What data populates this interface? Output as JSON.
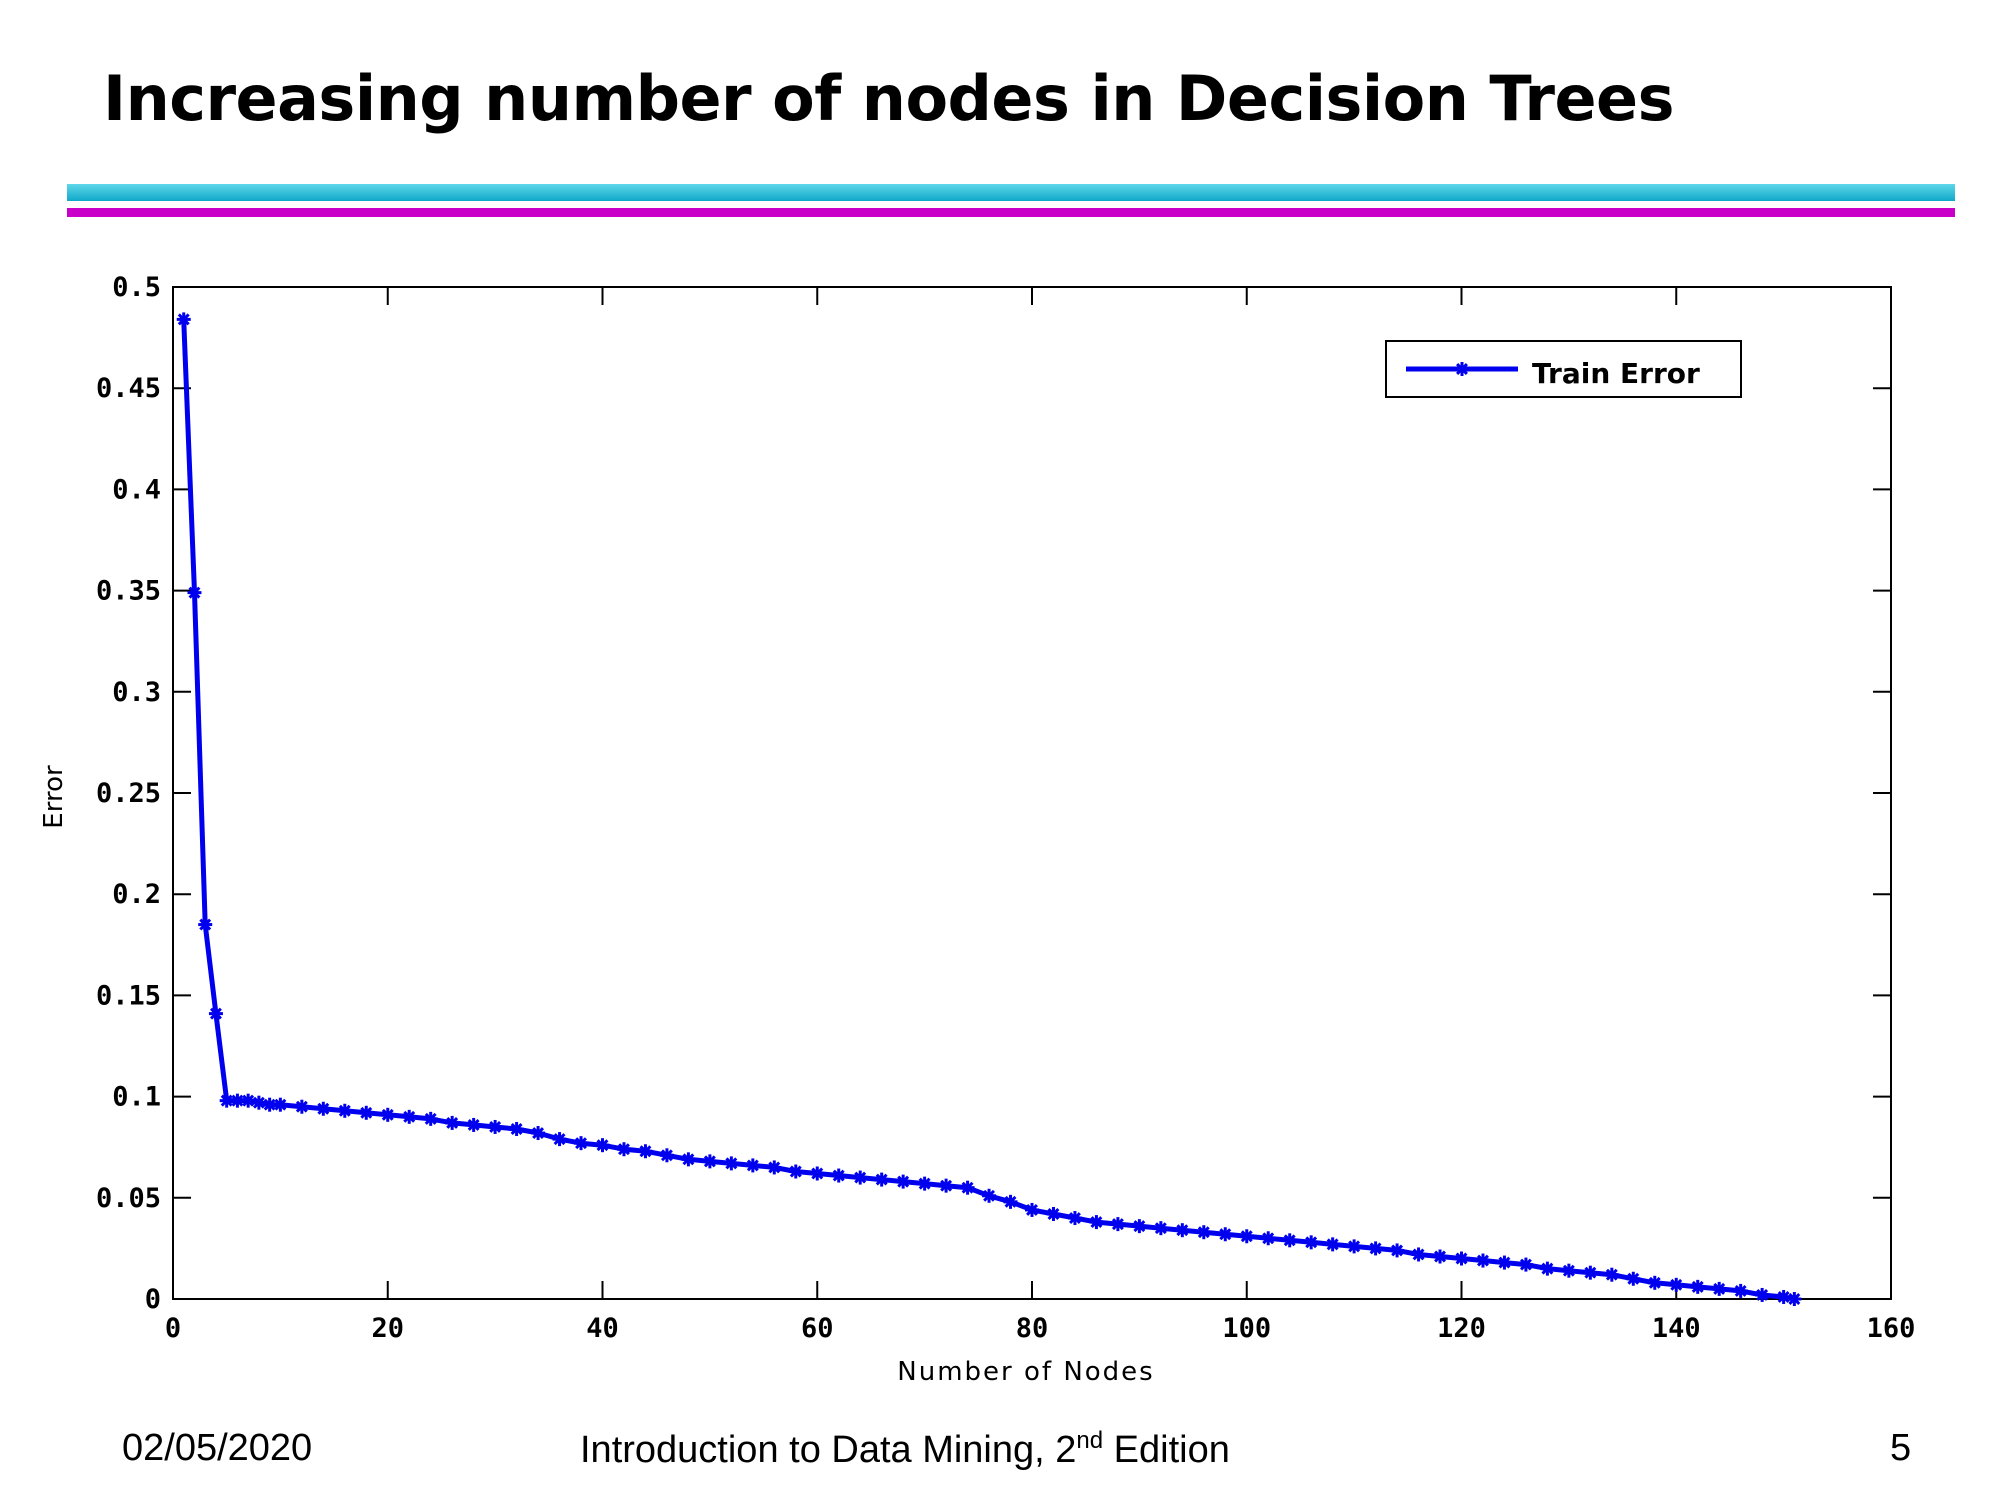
{
  "slide": {
    "title": "Increasing number of nodes in Decision Trees"
  },
  "footer": {
    "date": "02/05/2020",
    "course_prefix": "Introduction to Data Mining, 2",
    "course_sup": "nd",
    "course_suffix": " Edition",
    "page": "5"
  },
  "colors": {
    "rule_cyan": "#10a8c8",
    "rule_magenta": "#c800c8",
    "series": "#0000ee"
  },
  "chart_data": {
    "type": "line",
    "xlabel": "Number of Nodes",
    "ylabel": "Error",
    "xlim": [
      0,
      160
    ],
    "ylim": [
      0,
      0.5
    ],
    "xticks": [
      "0",
      "20",
      "40",
      "60",
      "80",
      "100",
      "120",
      "140",
      "160"
    ],
    "yticks": [
      "0",
      "0.05",
      "0.1",
      "0.15",
      "0.2",
      "0.25",
      "0.3",
      "0.35",
      "0.4",
      "0.45",
      "0.5"
    ],
    "legend": "top-right",
    "series": [
      {
        "name": "Train Error",
        "marker": "asterisk",
        "x": [
          1,
          2,
          3,
          4,
          5,
          6,
          7,
          8,
          9,
          10,
          12,
          14,
          16,
          18,
          20,
          22,
          24,
          26,
          28,
          30,
          32,
          34,
          36,
          38,
          40,
          42,
          44,
          46,
          48,
          50,
          52,
          54,
          56,
          58,
          60,
          62,
          64,
          66,
          68,
          70,
          72,
          74,
          76,
          78,
          80,
          82,
          84,
          86,
          88,
          90,
          92,
          94,
          96,
          98,
          100,
          102,
          104,
          106,
          108,
          110,
          112,
          114,
          116,
          118,
          120,
          122,
          124,
          126,
          128,
          130,
          132,
          134,
          136,
          138,
          140,
          142,
          144,
          146,
          148,
          150,
          151
        ],
        "y": [
          0.484,
          0.349,
          0.185,
          0.141,
          0.098,
          0.098,
          0.098,
          0.097,
          0.096,
          0.096,
          0.095,
          0.094,
          0.093,
          0.092,
          0.091,
          0.09,
          0.089,
          0.087,
          0.086,
          0.085,
          0.084,
          0.082,
          0.079,
          0.077,
          0.076,
          0.074,
          0.073,
          0.071,
          0.069,
          0.068,
          0.067,
          0.066,
          0.065,
          0.063,
          0.062,
          0.061,
          0.06,
          0.059,
          0.058,
          0.057,
          0.056,
          0.055,
          0.051,
          0.048,
          0.044,
          0.042,
          0.04,
          0.038,
          0.037,
          0.036,
          0.035,
          0.034,
          0.033,
          0.032,
          0.031,
          0.03,
          0.029,
          0.028,
          0.027,
          0.026,
          0.025,
          0.024,
          0.022,
          0.021,
          0.02,
          0.019,
          0.018,
          0.017,
          0.015,
          0.014,
          0.013,
          0.012,
          0.01,
          0.008,
          0.007,
          0.006,
          0.005,
          0.004,
          0.002,
          0.001,
          0.0
        ]
      }
    ]
  }
}
